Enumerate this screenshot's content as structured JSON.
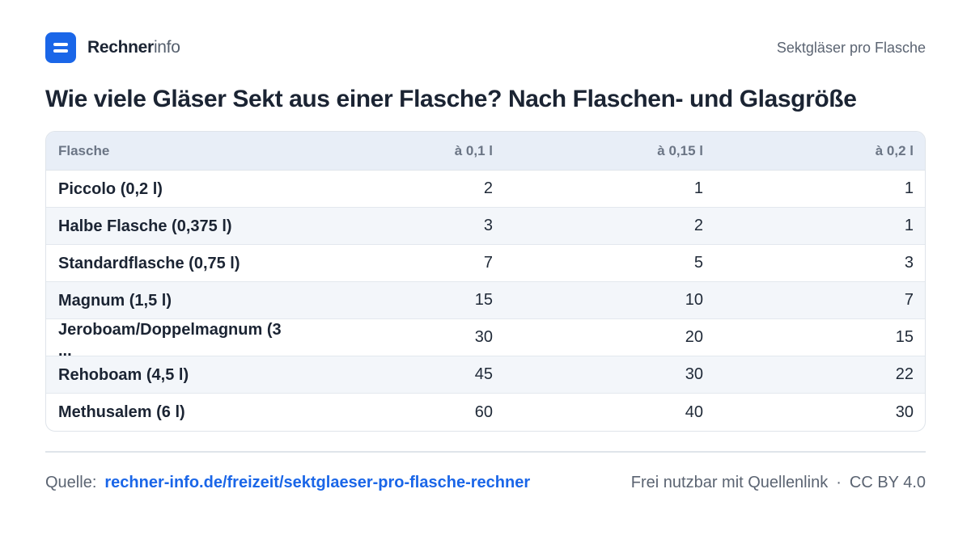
{
  "header": {
    "brand_bold": "Rechner",
    "brand_light": "info",
    "topic": "Sektgläser pro Flasche"
  },
  "title": "Wie viele Gläser Sekt aus einer Flasche? Nach Flaschen- und Glasgröße",
  "table": {
    "columns": [
      "Flasche",
      "à 0,1 l",
      "à 0,15 l",
      "à 0,2 l"
    ],
    "rows": [
      {
        "label": "Piccolo (0,2 l)",
        "values": [
          "2",
          "1",
          "1"
        ]
      },
      {
        "label": "Halbe Flasche (0,375 l)",
        "values": [
          "3",
          "2",
          "1"
        ]
      },
      {
        "label": "Standardflasche (0,75 l)",
        "values": [
          "7",
          "5",
          "3"
        ]
      },
      {
        "label": "Magnum (1,5 l)",
        "values": [
          "15",
          "10",
          "7"
        ]
      },
      {
        "label": "Jeroboam/Doppelmagnum (3 ...",
        "values": [
          "30",
          "20",
          "15"
        ]
      },
      {
        "label": "Rehoboam (4,5 l)",
        "values": [
          "45",
          "30",
          "22"
        ]
      },
      {
        "label": "Methusalem (6 l)",
        "values": [
          "60",
          "40",
          "30"
        ]
      }
    ]
  },
  "footer": {
    "source_label": "Quelle:",
    "source_link": "rechner-info.de/freizeit/sektglaeser-pro-flasche-rechner",
    "license_text": "Frei nutzbar mit Quellenlink",
    "separator": "·",
    "license": "CC BY 4.0"
  },
  "colors": {
    "accent": "#1a66e8",
    "header_bg": "#e8eef7",
    "alt_row_bg": "#f3f6fa"
  }
}
